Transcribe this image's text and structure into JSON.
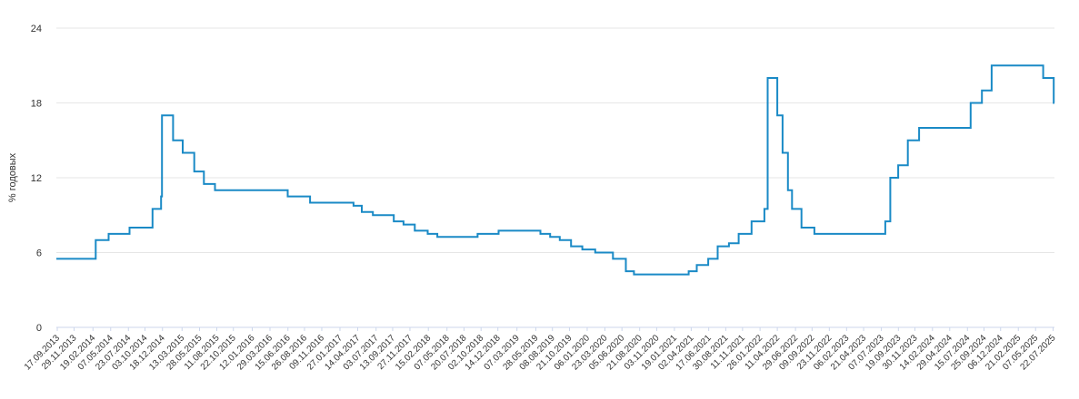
{
  "chart_data": {
    "type": "line",
    "title": "",
    "ylabel": "% годовых",
    "xlabel": "",
    "ylim": [
      0,
      24
    ],
    "yticks": [
      0,
      6,
      12,
      18,
      24
    ],
    "grid": "horizontal",
    "colors": {
      "line": "#1a8ac6",
      "grid": "#e6e6e6",
      "axis": "#ccd6eb"
    },
    "xlim": [
      "2013-09-13",
      "2025-07-28"
    ],
    "xtick_labels": [
      "17.09.2013",
      "29.11.2013",
      "19.02.2014",
      "07.05.2014",
      "23.07.2014",
      "03.10.2014",
      "18.12.2014",
      "13.03.2015",
      "28.05.2015",
      "11.08.2015",
      "22.10.2015",
      "12.01.2016",
      "29.03.2016",
      "15.06.2016",
      "26.08.2016",
      "09.11.2016",
      "27.01.2017",
      "14.04.2017",
      "03.07.2017",
      "13.09.2017",
      "27.11.2017",
      "15.02.2018",
      "07.05.2018",
      "20.07.2018",
      "02.10.2018",
      "14.12.2018",
      "07.03.2019",
      "28.05.2019",
      "08.08.2019",
      "21.10.2019",
      "06.01.2020",
      "23.03.2020",
      "05.06.2020",
      "21.08.2020",
      "03.11.2020",
      "19.01.2021",
      "02.04.2021",
      "17.06.2021",
      "30.08.2021",
      "11.11.2021",
      "26.01.2022",
      "11.04.2022",
      "29.06.2022",
      "09.09.2022",
      "23.11.2022",
      "06.02.2023",
      "21.04.2023",
      "07.07.2023",
      "19.09.2023",
      "30.11.2023",
      "14.02.2024",
      "29.04.2024",
      "15.07.2024",
      "25.09.2024",
      "06.12.2024",
      "21.02.2025",
      "07.05.2025",
      "22.07.2025"
    ],
    "series": [
      {
        "name": "",
        "step": true,
        "points": [
          [
            "2013-09-13",
            5.5
          ],
          [
            "2014-03-03",
            7.0
          ],
          [
            "2014-04-28",
            7.5
          ],
          [
            "2014-07-28",
            8.0
          ],
          [
            "2014-11-05",
            9.5
          ],
          [
            "2014-12-12",
            10.5
          ],
          [
            "2014-12-16",
            17.0
          ],
          [
            "2015-02-02",
            15.0
          ],
          [
            "2015-03-16",
            14.0
          ],
          [
            "2015-05-05",
            12.5
          ],
          [
            "2015-06-16",
            11.5
          ],
          [
            "2015-08-03",
            11.0
          ],
          [
            "2016-06-14",
            10.5
          ],
          [
            "2016-09-19",
            10.0
          ],
          [
            "2017-03-27",
            9.75
          ],
          [
            "2017-05-02",
            9.25
          ],
          [
            "2017-06-19",
            9.0
          ],
          [
            "2017-09-18",
            8.5
          ],
          [
            "2017-10-30",
            8.25
          ],
          [
            "2017-12-18",
            7.75
          ],
          [
            "2018-02-12",
            7.5
          ],
          [
            "2018-03-26",
            7.25
          ],
          [
            "2018-09-17",
            7.5
          ],
          [
            "2018-12-17",
            7.75
          ],
          [
            "2019-06-17",
            7.5
          ],
          [
            "2019-07-29",
            7.25
          ],
          [
            "2019-09-09",
            7.0
          ],
          [
            "2019-10-28",
            6.5
          ],
          [
            "2019-12-16",
            6.25
          ],
          [
            "2020-02-10",
            6.0
          ],
          [
            "2020-04-27",
            5.5
          ],
          [
            "2020-06-22",
            4.5
          ],
          [
            "2020-07-27",
            4.25
          ],
          [
            "2021-03-22",
            4.5
          ],
          [
            "2021-04-26",
            5.0
          ],
          [
            "2021-06-15",
            5.5
          ],
          [
            "2021-07-26",
            6.5
          ],
          [
            "2021-09-13",
            6.75
          ],
          [
            "2021-10-25",
            7.5
          ],
          [
            "2021-12-20",
            8.5
          ],
          [
            "2022-02-14",
            9.5
          ],
          [
            "2022-02-28",
            20.0
          ],
          [
            "2022-04-11",
            17.0
          ],
          [
            "2022-05-04",
            14.0
          ],
          [
            "2022-05-27",
            11.0
          ],
          [
            "2022-06-14",
            9.5
          ],
          [
            "2022-07-25",
            8.0
          ],
          [
            "2022-09-19",
            7.5
          ],
          [
            "2023-07-24",
            8.5
          ],
          [
            "2023-08-15",
            12.0
          ],
          [
            "2023-09-18",
            13.0
          ],
          [
            "2023-10-30",
            15.0
          ],
          [
            "2023-12-18",
            16.0
          ],
          [
            "2024-07-29",
            18.0
          ],
          [
            "2024-09-16",
            19.0
          ],
          [
            "2024-10-28",
            21.0
          ],
          [
            "2025-06-09",
            20.0
          ],
          [
            "2025-07-25",
            18.0
          ],
          [
            "2025-07-28",
            18.0
          ]
        ]
      }
    ]
  }
}
